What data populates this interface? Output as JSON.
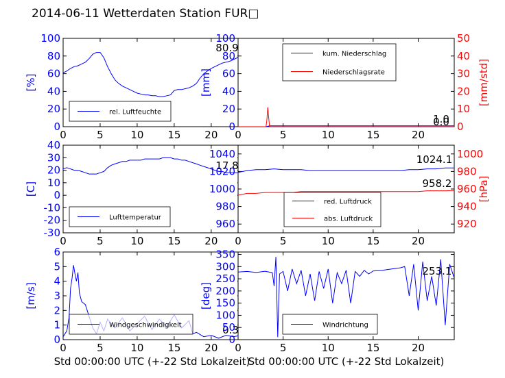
{
  "figure": {
    "title": "2014-06-11 Wetterdaten Station FUR□"
  },
  "chart_data": [
    {
      "type": "line",
      "panel": "top-left",
      "ylabel": "[%]",
      "ylim": [
        0,
        100
      ],
      "yticks": [
        0,
        20,
        40,
        60,
        80,
        100
      ],
      "xlim": [
        0,
        24
      ],
      "xticks": [
        0,
        5,
        10,
        15,
        20
      ],
      "xlabel": "",
      "legend": "bottom-left",
      "annotations": [
        "80.9"
      ],
      "series": [
        {
          "name": "rel. Luftfeuchte",
          "color": "#0000ff",
          "axis": "left",
          "x": [
            0,
            0.5,
            1,
            1.5,
            2,
            2.5,
            3,
            3.5,
            4,
            4.5,
            5,
            5.5,
            6,
            6.5,
            7,
            7.5,
            8,
            8.5,
            9,
            9.5,
            10,
            10.5,
            11,
            11.5,
            12,
            12.5,
            13,
            13.5,
            14,
            14.5,
            15,
            15.5,
            16,
            16.5,
            17,
            17.5,
            18,
            18.5,
            19,
            19.5,
            20,
            20.5,
            21,
            21.5,
            22,
            22.5,
            23,
            23.5,
            24
          ],
          "y": [
            61,
            63,
            66,
            68,
            69,
            71,
            73,
            77,
            82,
            84,
            84,
            78,
            68,
            60,
            53,
            49,
            46,
            44,
            42,
            40,
            38,
            37,
            36,
            36,
            35,
            35,
            34,
            34,
            35,
            36,
            41,
            42,
            42,
            43,
            44,
            46,
            49,
            55,
            60,
            63,
            66,
            68,
            70,
            72,
            73,
            74,
            76,
            78,
            80.9
          ]
        }
      ]
    },
    {
      "type": "line",
      "panel": "top-right",
      "ylabel": "[mm]",
      "ylabel_right": "[mm/std]",
      "ylim": [
        0,
        100
      ],
      "yticks": [
        0,
        20,
        40,
        60,
        80,
        100
      ],
      "ylim_right": [
        0,
        50
      ],
      "yticks_right": [
        0,
        10,
        20,
        30,
        40,
        50
      ],
      "xlim": [
        0,
        24
      ],
      "xticks": [
        0,
        5,
        10,
        15,
        20
      ],
      "xlabel": "",
      "legend": "top-left",
      "annotations": [
        "1.0",
        "0.0"
      ],
      "series": [
        {
          "name": "kum. Niederschlag",
          "color": "#0000ff",
          "axis": "left",
          "x": [
            0,
            3.1,
            3.3,
            3.5,
            24
          ],
          "y": [
            0,
            0,
            0.5,
            1.0,
            1.0
          ]
        },
        {
          "name": "Niederschlagsrate",
          "color": "#ff0000",
          "axis": "right",
          "x": [
            0,
            3.1,
            3.2,
            3.3,
            3.4,
            3.5,
            24
          ],
          "y": [
            0,
            0,
            4,
            11,
            5,
            0,
            0
          ]
        }
      ]
    },
    {
      "type": "line",
      "panel": "middle-left",
      "ylabel": "[C]",
      "ylim": [
        -30,
        40
      ],
      "yticks": [
        -30,
        -20,
        -10,
        0,
        10,
        20,
        30,
        40
      ],
      "xlim": [
        0,
        24
      ],
      "xticks": [
        0,
        5,
        10,
        15,
        20
      ],
      "xlabel": "",
      "legend": "bottom-left",
      "annotations": [
        "17.8"
      ],
      "series": [
        {
          "name": "Lufttemperatur",
          "color": "#0000ff",
          "axis": "left",
          "x": [
            0,
            0.5,
            1,
            1.5,
            2,
            2.5,
            3,
            3.5,
            4,
            4.5,
            5,
            5.5,
            6,
            6.5,
            7,
            7.5,
            8,
            8.5,
            9,
            9.5,
            10,
            10.5,
            11,
            11.5,
            12,
            12.5,
            13,
            13.5,
            14,
            14.5,
            15,
            15.5,
            16,
            16.5,
            17,
            17.5,
            18,
            18.5,
            19,
            19.5,
            20,
            20.5,
            21,
            21.5,
            22,
            22.5,
            23,
            23.5,
            24
          ],
          "y": [
            21,
            22,
            21,
            20,
            20,
            19,
            18,
            17,
            17,
            17,
            18,
            19,
            22,
            24,
            25,
            26,
            27,
            27,
            28,
            28,
            28,
            28,
            29,
            29,
            29,
            29,
            29,
            30,
            30,
            30,
            29,
            29,
            28,
            28,
            27,
            26,
            25,
            24,
            23,
            22,
            21,
            20,
            19,
            19,
            18,
            18,
            18,
            18,
            17.8
          ]
        }
      ]
    },
    {
      "type": "line",
      "panel": "middle-right",
      "ylabel": "",
      "ylabel_right": "[hPa]",
      "ylim": [
        950,
        1050
      ],
      "yticks": [
        960,
        980,
        1000,
        1020,
        1040
      ],
      "ylim_right": [
        910,
        1010
      ],
      "yticks_right": [
        920,
        940,
        960,
        980,
        1000
      ],
      "xlim": [
        0,
        24
      ],
      "xticks": [
        0,
        5,
        10,
        15,
        20
      ],
      "xlabel": "",
      "legend": "bottom-left",
      "annotations": [
        "1024.1",
        "958.2"
      ],
      "series": [
        {
          "name": "red. Luftdruck",
          "color": "#0000ff",
          "axis": "left",
          "x": [
            0,
            1,
            2,
            3,
            4,
            5,
            6,
            7,
            8,
            9,
            10,
            11,
            12,
            13,
            14,
            15,
            16,
            17,
            18,
            19,
            20,
            21,
            22,
            23,
            24
          ],
          "y": [
            1019,
            1021,
            1022,
            1022,
            1023,
            1022,
            1022,
            1022,
            1021,
            1021,
            1021,
            1021,
            1021,
            1021,
            1021,
            1021,
            1021,
            1021,
            1021,
            1022,
            1022,
            1023,
            1023,
            1024,
            1024.1
          ]
        },
        {
          "name": "abs. Luftdruck",
          "color": "#ff0000",
          "axis": "right",
          "x": [
            0,
            1,
            2,
            3,
            4,
            5,
            6,
            7,
            8,
            9,
            10,
            11,
            12,
            13,
            14,
            15,
            16,
            17,
            18,
            19,
            20,
            21,
            22,
            23,
            24
          ],
          "y": [
            953,
            955,
            955,
            956,
            956,
            956,
            956,
            957,
            957,
            957,
            957,
            957,
            957,
            957,
            957,
            957,
            957,
            957,
            957,
            957,
            957,
            958,
            958,
            958,
            958.2
          ]
        }
      ]
    },
    {
      "type": "line",
      "panel": "bottom-left",
      "ylabel": "[m/s]",
      "ylim": [
        0,
        6
      ],
      "yticks": [
        0,
        1,
        2,
        3,
        4,
        5,
        6
      ],
      "xlim": [
        0,
        24
      ],
      "xticks": [
        0,
        5,
        10,
        15,
        20
      ],
      "xlabel": "Std 00:00:00 UTC (+-22 Std Lokalzeit)",
      "legend": "bottom-left",
      "annotations": [
        "0.3"
      ],
      "series": [
        {
          "name": "Windgeschwindigkeit",
          "color": "#0000ff",
          "axis": "left",
          "x": [
            0,
            0.5,
            0.8,
            1.0,
            1.2,
            1.4,
            1.6,
            1.8,
            2.0,
            2.2,
            2.5,
            3.0,
            3.5,
            4.0,
            4.5,
            5.0,
            5.5,
            6,
            7,
            8,
            9,
            10,
            11,
            12,
            13,
            14,
            15,
            16,
            17,
            17.5,
            18,
            19,
            20,
            21,
            22,
            23,
            24
          ],
          "y": [
            0.2,
            0.6,
            1.5,
            3.5,
            4.2,
            5.1,
            4.5,
            4.0,
            4.6,
            3.2,
            2.6,
            2.4,
            1.6,
            0.8,
            0.4,
            1.2,
            0.6,
            1.4,
            0.8,
            1.5,
            0.6,
            1.1,
            1.6,
            0.7,
            1.4,
            0.9,
            1.7,
            0.8,
            1.3,
            0.4,
            0.5,
            0.2,
            0.3,
            0.1,
            0.3,
            0.2,
            0.3
          ]
        }
      ]
    },
    {
      "type": "line",
      "panel": "bottom-right",
      "ylabel": "[deg]",
      "ylim": [
        0,
        360
      ],
      "yticks": [
        0,
        50,
        100,
        150,
        200,
        250,
        300,
        350
      ],
      "xlim": [
        0,
        24
      ],
      "xticks": [
        0,
        5,
        10,
        15,
        20
      ],
      "xlabel": "Std 00:00:00 UTC (+-22 Std Lokalzeit)",
      "legend": "bottom-left",
      "annotations": [
        "253.1"
      ],
      "series": [
        {
          "name": "Windrichtung",
          "color": "#0000ff",
          "axis": "left",
          "x": [
            0,
            1,
            2,
            3,
            3.8,
            4.0,
            4.2,
            4.4,
            4.6,
            5,
            5.5,
            6,
            6.5,
            7,
            7.5,
            8,
            8.5,
            9,
            9.5,
            10,
            10.5,
            11,
            11.5,
            12,
            12.5,
            13,
            13.5,
            14,
            14.5,
            15,
            16,
            17,
            18,
            18.5,
            19,
            19.5,
            20,
            20.5,
            21,
            21.5,
            22,
            22.5,
            23,
            23.5,
            24
          ],
          "y": [
            278,
            280,
            276,
            281,
            275,
            220,
            340,
            10,
            270,
            280,
            200,
            290,
            230,
            285,
            180,
            270,
            160,
            280,
            210,
            290,
            150,
            275,
            230,
            285,
            150,
            280,
            260,
            285,
            270,
            282,
            285,
            290,
            295,
            300,
            180,
            310,
            120,
            320,
            160,
            260,
            140,
            330,
            60,
            310,
            253.1
          ]
        }
      ]
    }
  ]
}
